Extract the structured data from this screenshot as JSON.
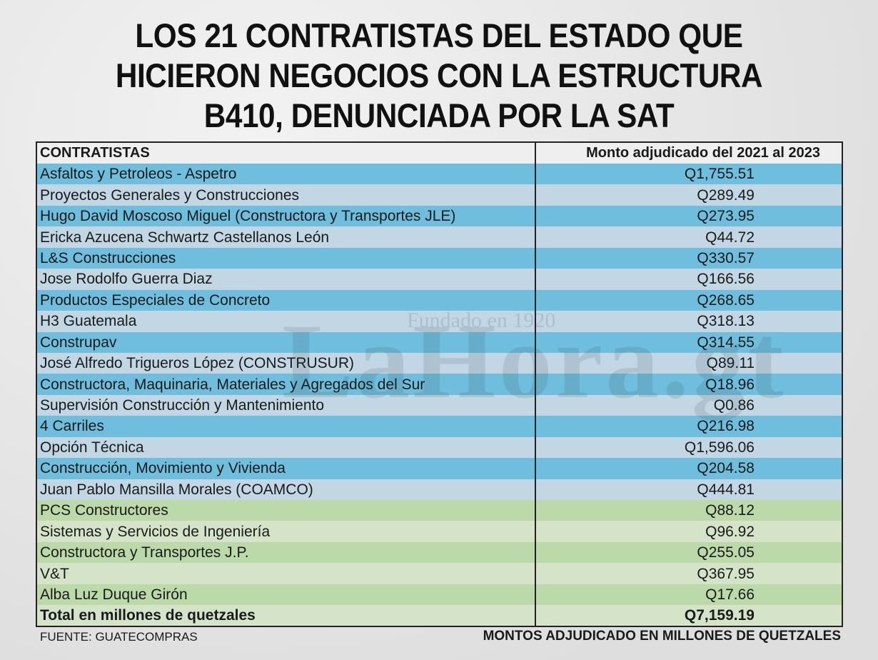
{
  "title": {
    "line1": "LOS 21 CONTRATISTAS DEL ESTADO QUE",
    "line2": "HICIERON NEGOCIOS CON LA ESTRUCTURA",
    "line3": "B410, DENUNCIADA POR LA SAT"
  },
  "table": {
    "headers": [
      "CONTRATISTAS",
      "Monto adjudicado del 2021 al 2023"
    ],
    "rows": [
      {
        "name": "Asfaltos y Petroleos - Aspetro",
        "amount": "Q1,755.51"
      },
      {
        "name": "Proyectos Generales y Construcciones",
        "amount": "Q289.49"
      },
      {
        "name": "Hugo David Moscoso Miguel (Constructora y Transportes JLE)",
        "amount": "Q273.95"
      },
      {
        "name": "Ericka Azucena Schwartz Castellanos León",
        "amount": "Q44.72"
      },
      {
        "name": "L&S Construcciones",
        "amount": "Q330.57"
      },
      {
        "name": "Jose Rodolfo Guerra Diaz",
        "amount": "Q166.56"
      },
      {
        "name": "Productos Especiales de Concreto",
        "amount": "Q268.65"
      },
      {
        "name": "H3 Guatemala",
        "amount": "Q318.13"
      },
      {
        "name": "Construpav",
        "amount": "Q314.55"
      },
      {
        "name": "José Alfredo Trigueros López (CONSTRUSUR)",
        "amount": "Q89.11"
      },
      {
        "name": "Constructora, Maquinaria, Materiales y Agregados del Sur",
        "amount": "Q18.96"
      },
      {
        "name": "Supervisión Construcción y Mantenimiento",
        "amount": "Q0.86"
      },
      {
        "name": "4 Carriles",
        "amount": "Q216.98"
      },
      {
        "name": "Opción Técnica",
        "amount": "Q1,596.06"
      },
      {
        "name": "Construcción, Movimiento y Vivienda",
        "amount": "Q204.58"
      },
      {
        "name": "Juan Pablo Mansilla Morales (COAMCO)",
        "amount": "Q444.81"
      },
      {
        "name": "PCS Constructores",
        "amount": "Q88.12"
      },
      {
        "name": "Sistemas y Servicios de Ingeniería",
        "amount": "Q96.92"
      },
      {
        "name": "Constructora y Transportes J.P.",
        "amount": "Q255.05"
      },
      {
        "name": "V&T",
        "amount": "Q367.95"
      },
      {
        "name": "Alba Luz Duque Girón",
        "amount": "Q17.66"
      }
    ],
    "total": {
      "name": "Total en millones de quetzales",
      "amount": "Q7,159.19"
    }
  },
  "watermark": {
    "logo": "LaHora.gt",
    "tagline": "Fundado en 1920"
  },
  "footer": {
    "source": "FUENTE: GUATECOMPRAS",
    "note": "MONTOS ADJUDICADO EN MILLONES DE QUETZALES"
  },
  "colors": {
    "blue_dark": "#70bedd",
    "blue_light": "#c3d6e4",
    "green_dark": "#bcd9a9",
    "green_light": "#d5e4c9"
  }
}
